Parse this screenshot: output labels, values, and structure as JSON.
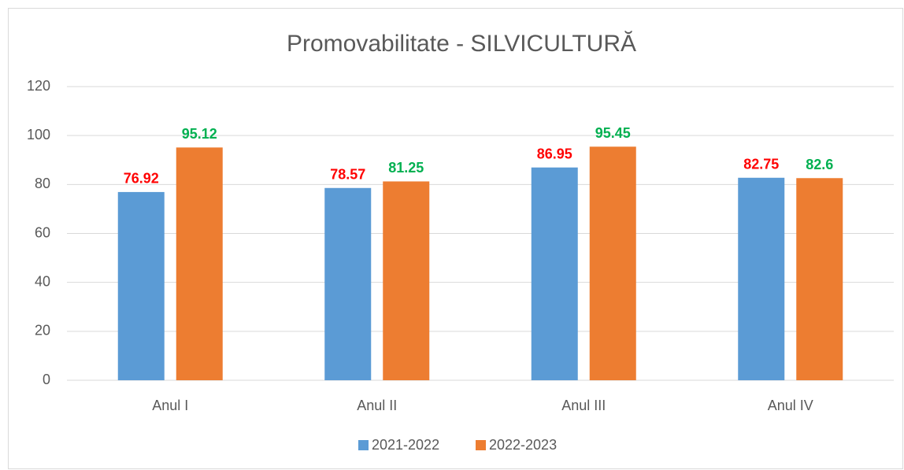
{
  "chart_data": {
    "type": "bar",
    "title": "Promovabilitate - SILVICULTURĂ",
    "categories": [
      "Anul I",
      "Anul II",
      "Anul III",
      "Anul IV"
    ],
    "series": [
      {
        "name": "2021-2022",
        "color": "#5b9bd5",
        "label_color": "#ff0000",
        "values": [
          76.92,
          78.57,
          86.95,
          82.75
        ]
      },
      {
        "name": "2022-2023",
        "color": "#ed7d31",
        "label_color": "#00b050",
        "values": [
          95.12,
          81.25,
          95.45,
          82.6
        ]
      }
    ],
    "ylim": [
      0,
      120
    ],
    "yticks": [
      0,
      20,
      40,
      60,
      80,
      100,
      120
    ],
    "grid": true,
    "legend": "bottom"
  }
}
